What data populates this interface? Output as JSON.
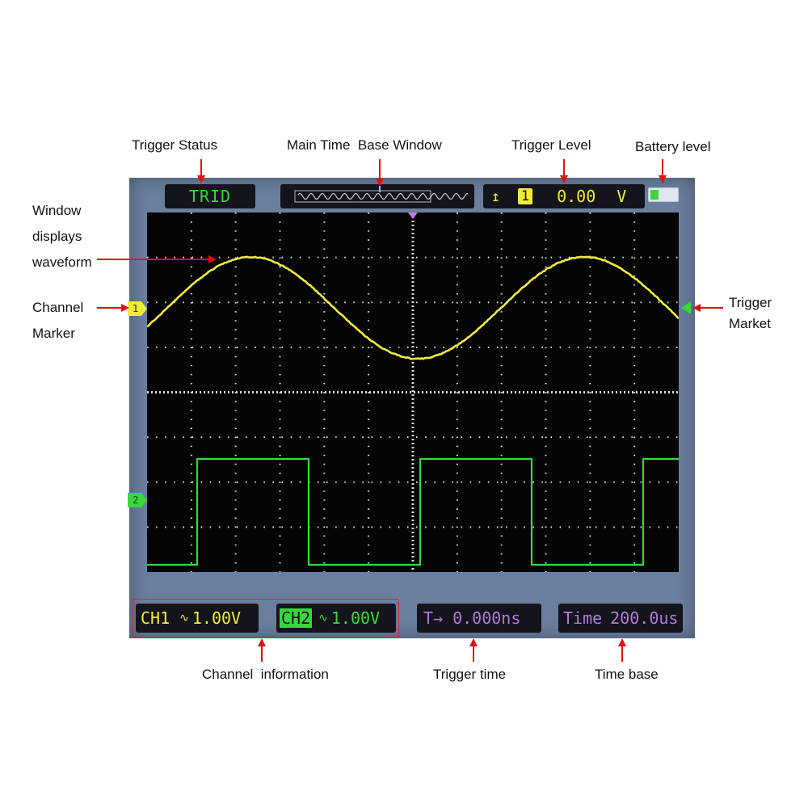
{
  "labels": {
    "trigger_status": "Trigger Status",
    "main_time_base_window": "Main Time  Base Window",
    "trigger_level": "Trigger Level",
    "battery_level": "Battery level",
    "window_displays_waveform": [
      "Window",
      "displays",
      "waveform"
    ],
    "channel_marker": [
      "Channel",
      "Marker"
    ],
    "trigger_market": [
      "Trigger",
      "Market"
    ],
    "channel_information": "Channel  information",
    "trigger_time": "Trigger time",
    "time_base": "Time base"
  },
  "screen": {
    "trigger_status": "TRID",
    "trigger_channel": "1",
    "trigger_level_value": "0.00",
    "trigger_level_unit": "V",
    "ch1_name": "CH1",
    "ch1_scale": "1.00V",
    "ch2_name": "CH2",
    "ch2_scale": "1.00V",
    "trigger_time_prefix": "T→",
    "trigger_time_value": "0.000ns",
    "time_base_prefix": "Time",
    "time_base_value": "200.0us",
    "ch1_marker": "1",
    "ch2_marker": "2",
    "battery_fill": 0.3
  },
  "colors": {
    "ch1": "#f2ea3c",
    "ch2": "#37d93a",
    "trigger_status": "#3dd23d",
    "purple": "#b27ad8",
    "arrow": "#e01010",
    "frame": "#6a7f9e",
    "grid_dot": "#d8d8d8",
    "channel_info_box": "#d02828"
  }
}
